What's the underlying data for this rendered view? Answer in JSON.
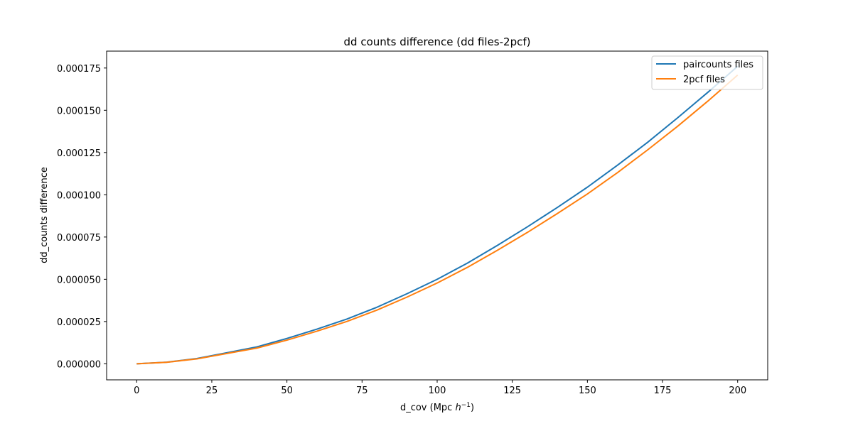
{
  "chart_data": {
    "type": "line",
    "title": "dd counts difference (dd files-2pcf)",
    "xlabel": "d_cov (Mpc ",
    "xlabel_math": "h",
    "xlabel_exp": "−1",
    "xlabel_close": ")",
    "ylabel": "dd_counts difference",
    "xlim": [
      -10,
      210
    ],
    "ylim": [
      -9.5e-06,
      0.000185
    ],
    "xticks": [
      0,
      25,
      50,
      75,
      100,
      125,
      150,
      175,
      200
    ],
    "xtick_labels": [
      "0",
      "25",
      "50",
      "75",
      "100",
      "125",
      "150",
      "175",
      "200"
    ],
    "yticks": [
      0,
      2.5e-05,
      5e-05,
      7.5e-05,
      0.0001,
      0.000125,
      0.00015,
      0.000175
    ],
    "ytick_labels": [
      "0.000000",
      "0.000025",
      "0.000050",
      "0.000075",
      "0.000100",
      "0.000125",
      "0.000150",
      "0.000175"
    ],
    "grid": false,
    "legend_position": "top-right",
    "series": [
      {
        "name": "paircounts files",
        "color": "#1f77b4",
        "x": [
          0,
          10,
          20,
          30,
          40,
          50,
          60,
          70,
          80,
          90,
          100,
          110,
          120,
          130,
          140,
          150,
          160,
          170,
          180,
          190,
          200
        ],
        "y": [
          0.0,
          9.6e-07,
          3.1e-06,
          6.5e-06,
          1e-05,
          1.5e-05,
          2.05e-05,
          2.65e-05,
          3.35e-05,
          4.15e-05,
          5e-05,
          5.95e-05,
          7e-05,
          8.1e-05,
          9.25e-05,
          0.0001045,
          0.0001175,
          0.000131,
          0.0001455,
          0.0001605,
          0.000176
        ]
      },
      {
        "name": "2pcf files",
        "color": "#ff7f0e",
        "x": [
          0,
          10,
          20,
          30,
          40,
          50,
          60,
          70,
          80,
          90,
          100,
          110,
          120,
          130,
          140,
          150,
          160,
          170,
          180,
          190,
          200
        ],
        "y": [
          0.0,
          9e-07,
          2.9e-06,
          6.1e-06,
          9.3e-06,
          1.4e-05,
          1.93e-05,
          2.51e-05,
          3.18e-05,
          3.95e-05,
          4.78e-05,
          5.7e-05,
          6.71e-05,
          7.77e-05,
          8.89e-05,
          0.0001005,
          0.0001131,
          0.0001265,
          0.0001405,
          0.0001553,
          0.0001708
        ]
      }
    ]
  }
}
